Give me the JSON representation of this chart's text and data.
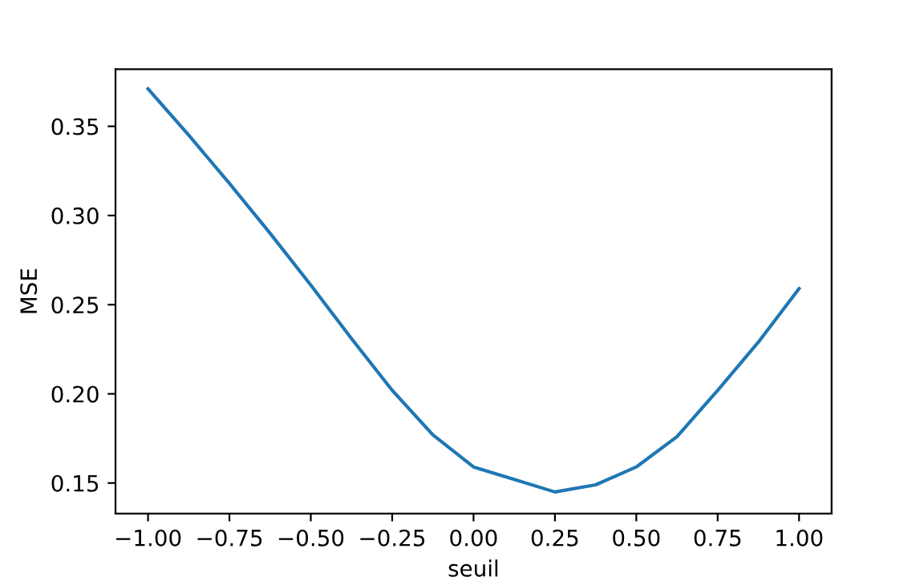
{
  "chart_data": {
    "type": "line",
    "xlabel": "seuil",
    "ylabel": "MSE",
    "x": [
      -1.0,
      -0.875,
      -0.75,
      -0.625,
      -0.5,
      -0.375,
      -0.25,
      -0.125,
      0.0,
      0.125,
      0.25,
      0.375,
      0.5,
      0.625,
      0.75,
      0.875,
      1.0
    ],
    "series": [
      {
        "color": "#1f77b4",
        "values": [
          0.371,
          0.345,
          0.318,
          0.29,
          0.261,
          0.231,
          0.202,
          0.177,
          0.159,
          0.152,
          0.145,
          0.149,
          0.159,
          0.176,
          0.202,
          0.229,
          0.259
        ]
      }
    ],
    "xlim": [
      -1.1,
      1.1
    ],
    "ylim": [
      0.1329,
      0.382
    ],
    "xticks": [
      {
        "value": -1.0,
        "label": "−1.00"
      },
      {
        "value": -0.75,
        "label": "−0.75"
      },
      {
        "value": -0.5,
        "label": "−0.50"
      },
      {
        "value": -0.25,
        "label": "−0.25"
      },
      {
        "value": 0.0,
        "label": "0.00"
      },
      {
        "value": 0.25,
        "label": "0.25"
      },
      {
        "value": 0.5,
        "label": "0.50"
      },
      {
        "value": 0.75,
        "label": "0.75"
      },
      {
        "value": 1.0,
        "label": "1.00"
      }
    ],
    "yticks": [
      {
        "value": 0.15,
        "label": "0.15"
      },
      {
        "value": 0.2,
        "label": "0.20"
      },
      {
        "value": 0.25,
        "label": "0.25"
      },
      {
        "value": 0.3,
        "label": "0.30"
      },
      {
        "value": 0.35,
        "label": "0.35"
      }
    ],
    "grid": false,
    "marker": "none",
    "line_style": "solid"
  }
}
